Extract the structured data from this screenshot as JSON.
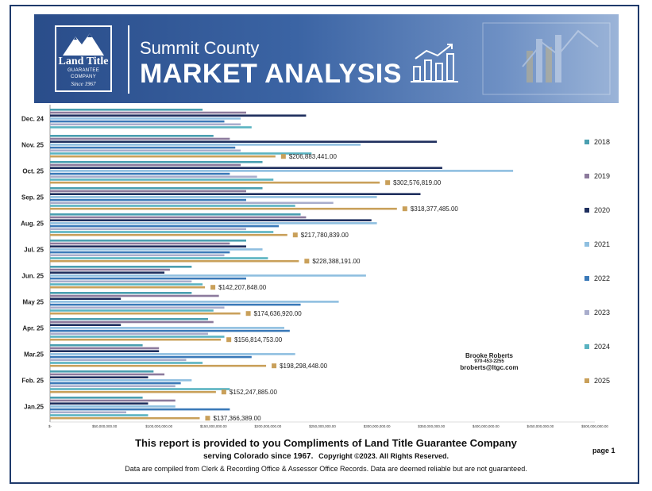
{
  "header": {
    "logo_line1": "Land Title",
    "logo_line2": "GUARANTEE COMPANY",
    "logo_line3": "Since 1967",
    "title_small": "Summit County",
    "title_large": "MARKET ANALYSIS"
  },
  "chart_data": {
    "type": "bar",
    "orientation": "horizontal",
    "categories": [
      "Dec. 24",
      "Nov. 25",
      "Oct. 25",
      "Sep. 25",
      "Aug. 25",
      "Jul. 25",
      "Jun. 25",
      "May 25",
      "Apr. 25",
      "Mar.25",
      "Feb. 25",
      "Jan.25"
    ],
    "x_tick_labels": [
      "$-",
      "$50,000,000.00",
      "$100,000,000.00",
      "$150,000,000.00",
      "$200,000,000.00",
      "$250,000,000.00",
      "$300,000,000.00",
      "$350,000,000.00",
      "$400,000,000.00",
      "$450,000,000.00",
      "$500,000,000.00"
    ],
    "xlim": [
      0,
      500000000
    ],
    "legend_position": "right",
    "series": [
      {
        "name": "2018",
        "color": "#4a9fb0",
        "values": [
          140000000,
          150000000,
          195000000,
          195000000,
          230000000,
          180000000,
          130000000,
          130000000,
          145000000,
          85000000,
          95000000,
          85000000
        ]
      },
      {
        "name": "2019",
        "color": "#8c7a9c",
        "values": [
          180000000,
          165000000,
          175000000,
          180000000,
          235000000,
          165000000,
          110000000,
          155000000,
          150000000,
          100000000,
          105000000,
          115000000
        ]
      },
      {
        "name": "2020",
        "color": "#1f2f5e",
        "values": [
          235000000,
          355000000,
          360000000,
          340000000,
          295000000,
          180000000,
          105000000,
          65000000,
          65000000,
          100000000,
          90000000,
          90000000
        ]
      },
      {
        "name": "2021",
        "color": "#8fbfe0",
        "values": [
          175000000,
          285000000,
          425000000,
          300000000,
          300000000,
          195000000,
          290000000,
          265000000,
          215000000,
          225000000,
          130000000,
          115000000
        ]
      },
      {
        "name": "2022",
        "color": "#3a79b8",
        "values": [
          160000000,
          170000000,
          165000000,
          180000000,
          210000000,
          165000000,
          180000000,
          230000000,
          220000000,
          185000000,
          120000000,
          165000000
        ]
      },
      {
        "name": "2023",
        "color": "#a9adcc",
        "values": [
          175000000,
          175000000,
          190000000,
          260000000,
          180000000,
          160000000,
          130000000,
          160000000,
          145000000,
          125000000,
          115000000,
          70000000
        ]
      },
      {
        "name": "2024",
        "color": "#5ab3c1",
        "values": [
          185000000,
          240000000,
          205000000,
          225000000,
          205000000,
          200000000,
          140000000,
          150000000,
          160000000,
          140000000,
          165000000,
          90000000
        ]
      },
      {
        "name": "2025",
        "color": "#c9a05a",
        "values": [
          null,
          206883441,
          302576819,
          318377485,
          217780839,
          228388191,
          142207848,
          174636920,
          156814753,
          198298448,
          152247885,
          137366389
        ]
      }
    ],
    "data_labels": {
      "2025": [
        "",
        "$206,883,441.00",
        "$302,576,819.00",
        "$318,377,485.00",
        "$217,780,839.00",
        "$228,388,191.00",
        "$142,207,848.00",
        "$174,636,920.00",
        "$156,814,753.00",
        "$198,298,448.00",
        "$152,247,885.00",
        "$137,366,389.00"
      ]
    }
  },
  "contact": {
    "name": "Brooke Roberts",
    "phone": "970-453-2255",
    "email": "broberts@ltgc.com"
  },
  "footer": {
    "line1": "This report is provided to you Compliments of Land Title Guarantee Company",
    "line2a": "serving Colorado since 1967.",
    "line2b": "Copyright ©2023.  All Rights Reserved.",
    "line3": "Data are compiled from Clerk & Recording Office & Assessor Office Records.  Data are deemed reliable but are not guaranteed.",
    "page": "page 1"
  }
}
